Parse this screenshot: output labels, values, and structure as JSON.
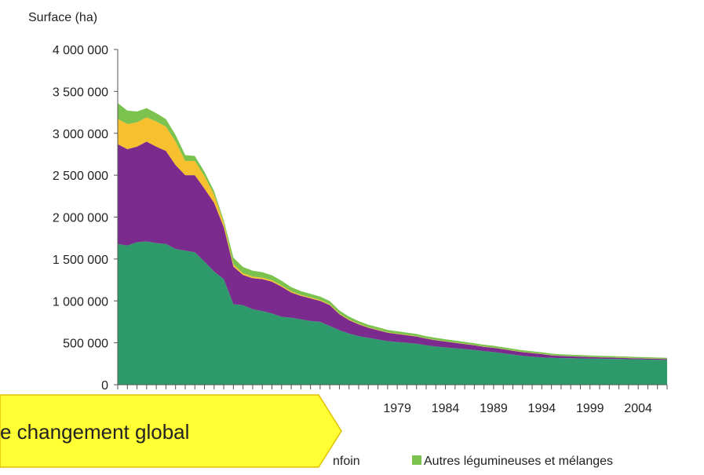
{
  "chart_data": {
    "type": "area",
    "stacked": true,
    "ylabel": "Surface (ha)",
    "ylim": [
      0,
      4000000
    ],
    "yticks": [
      0,
      500000,
      1000000,
      1500000,
      2000000,
      2500000,
      3000000,
      3500000,
      4000000
    ],
    "ytick_labels": [
      "0",
      "500 000",
      "1 000 000",
      "1 500 000",
      "2 000 000",
      "2 500 000",
      "3 000 000",
      "3 500 000",
      "4 000 000"
    ],
    "xlim": [
      1950,
      2007
    ],
    "xticks_labeled": [
      1979,
      1984,
      1989,
      1994,
      1999,
      2004
    ],
    "x": [
      1950,
      1951,
      1952,
      1953,
      1954,
      1955,
      1956,
      1957,
      1958,
      1959,
      1960,
      1961,
      1962,
      1963,
      1964,
      1965,
      1966,
      1967,
      1968,
      1969,
      1970,
      1971,
      1972,
      1973,
      1974,
      1975,
      1976,
      1977,
      1978,
      1979,
      1980,
      1981,
      1982,
      1983,
      1984,
      1985,
      1986,
      1987,
      1988,
      1989,
      1990,
      1991,
      1992,
      1993,
      1994,
      1995,
      1996,
      1997,
      1998,
      1999,
      2000,
      2001,
      2002,
      2003,
      2004,
      2005,
      2006,
      2007
    ],
    "series": [
      {
        "color": "#2e9a6b",
        "values": [
          1680000,
          1660000,
          1700000,
          1710000,
          1690000,
          1680000,
          1620000,
          1600000,
          1580000,
          1470000,
          1350000,
          1260000,
          960000,
          950000,
          900000,
          880000,
          850000,
          810000,
          800000,
          780000,
          760000,
          750000,
          700000,
          650000,
          610000,
          580000,
          560000,
          540000,
          520000,
          510000,
          500000,
          490000,
          470000,
          455000,
          445000,
          435000,
          425000,
          415000,
          400000,
          390000,
          375000,
          360000,
          345000,
          335000,
          325000,
          320000,
          318000,
          316000,
          314000,
          312000,
          310000,
          308000,
          306000,
          304000,
          302000,
          300000,
          298000,
          296000
        ]
      },
      {
        "color": "#7b2a8e",
        "values": [
          1190000,
          1150000,
          1140000,
          1190000,
          1150000,
          1110000,
          1000000,
          900000,
          920000,
          870000,
          820000,
          620000,
          450000,
          360000,
          370000,
          380000,
          380000,
          360000,
          300000,
          280000,
          270000,
          250000,
          250000,
          190000,
          160000,
          140000,
          120000,
          110000,
          100000,
          95000,
          90000,
          85000,
          80000,
          75000,
          70000,
          65000,
          60000,
          55000,
          52000,
          50000,
          48000,
          46000,
          44000,
          42000,
          40000,
          30000,
          25000,
          22000,
          20000,
          18000,
          17000,
          16000,
          15000,
          14000,
          13000,
          12000,
          11000,
          10000
        ]
      },
      {
        "color": "#f6c02f",
        "values": [
          300000,
          300000,
          290000,
          290000,
          300000,
          290000,
          280000,
          170000,
          170000,
          150000,
          100000,
          50000,
          25000,
          20000,
          20000,
          18000,
          16000,
          15000,
          14000,
          13000,
          12000,
          11000,
          10000,
          9000,
          8000,
          7000,
          6000,
          6000,
          5000,
          5000,
          5000,
          4000,
          4000,
          4000,
          3000,
          3000,
          3000,
          3000,
          3000,
          3000,
          3000,
          2000,
          2000,
          2000,
          2000,
          2000,
          2000,
          2000,
          2000,
          2000,
          2000,
          2000,
          2000,
          2000,
          2000,
          2000,
          2000,
          2000
        ]
      },
      {
        "name": "Autres légumineuses et mélanges",
        "color": "#7cc24e",
        "values": [
          190000,
          160000,
          130000,
          110000,
          100000,
          90000,
          80000,
          70000,
          60000,
          50000,
          40000,
          30000,
          80000,
          75000,
          70000,
          65000,
          60000,
          55000,
          50000,
          45000,
          42000,
          40000,
          38000,
          36000,
          34000,
          32000,
          30000,
          30000,
          28000,
          28000,
          27000,
          26000,
          25000,
          25000,
          24000,
          24000,
          23000,
          23000,
          22000,
          22000,
          21000,
          21000,
          20000,
          20000,
          19000,
          19000,
          18000,
          18000,
          17000,
          17000,
          16000,
          16000,
          15000,
          15000,
          14000,
          14000,
          13000,
          13000
        ]
      }
    ],
    "legend_visible_text": [
      "nfoin",
      "Autres légumineuses et mélanges"
    ],
    "grid": false
  },
  "callout": {
    "text": "e changement global",
    "color": "#ffff33",
    "border_color": "#e0c000"
  }
}
